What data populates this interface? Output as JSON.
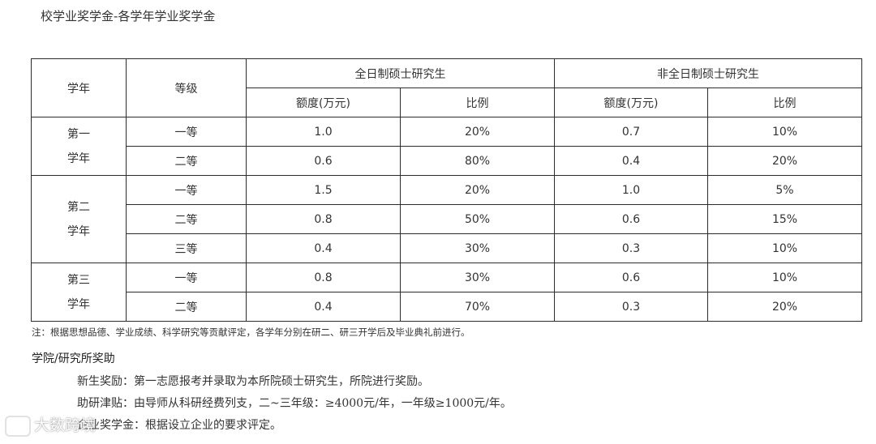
{
  "title": "校学业奖学金-各学年学业奖学金",
  "table": {
    "col_year": "学年",
    "col_level": "等级",
    "group_full": "全日制硕士研究生",
    "group_part": "非全日制硕士研究生",
    "sub_amount_full": "额度(万元)",
    "sub_ratio_full": "比例",
    "sub_amount_part": "额度(万元)",
    "sub_ratio_part": "比例",
    "years": [
      {
        "label_line1": "第一",
        "label_line2": "学年",
        "rows": [
          {
            "level": "一等",
            "full_amount": "1.0",
            "full_ratio": "20%",
            "part_amount": "0.7",
            "part_ratio": "10%"
          },
          {
            "level": "二等",
            "full_amount": "0.6",
            "full_ratio": "80%",
            "part_amount": "0.4",
            "part_ratio": "20%"
          }
        ]
      },
      {
        "label_line1": "第二",
        "label_line2": "学年",
        "rows": [
          {
            "level": "一等",
            "full_amount": "1.5",
            "full_ratio": "20%",
            "part_amount": "1.0",
            "part_ratio": "5%"
          },
          {
            "level": "二等",
            "full_amount": "0.8",
            "full_ratio": "50%",
            "part_amount": "0.6",
            "part_ratio": "15%"
          },
          {
            "level": "三等",
            "full_amount": "0.4",
            "full_ratio": "30%",
            "part_amount": "0.3",
            "part_ratio": "10%"
          }
        ]
      },
      {
        "label_line1": "第三",
        "label_line2": "学年",
        "rows": [
          {
            "level": "一等",
            "full_amount": "0.8",
            "full_ratio": "30%",
            "part_amount": "0.6",
            "part_ratio": "10%"
          },
          {
            "level": "二等",
            "full_amount": "0.4",
            "full_ratio": "70%",
            "part_amount": "0.3",
            "part_ratio": "20%"
          }
        ]
      }
    ]
  },
  "note": "注：根据思想品德、学业成绩、科学研究等贡献评定，各学年分别在研二、研三开学后及毕业典礼前进行。",
  "section_title": "学院/研究所奖助",
  "lines": [
    "新生奖励：第一志愿报考并录取为本所院硕士研究生，所院进行奖励。",
    "助研津贴：由导师从科研经费列支，二~三年级：≥4000元/年，一年级≥1000元/年。",
    "企业奖学金：根据设立企业的要求评定。"
  ],
  "watermark": "大数跨境"
}
